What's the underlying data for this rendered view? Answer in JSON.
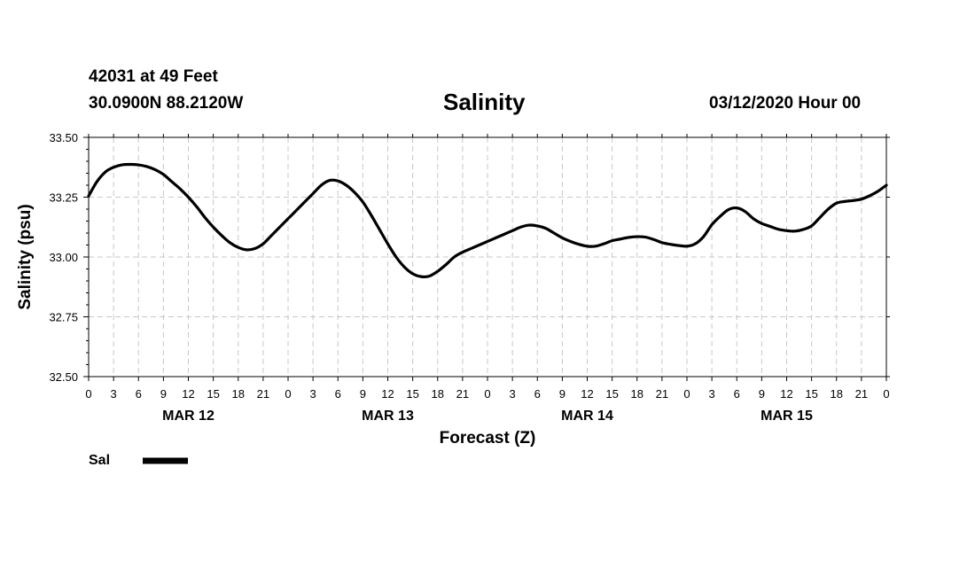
{
  "header": {
    "station": "42031 at 49 Feet",
    "coords": "30.0900N 88.2120W",
    "title": "Salinity",
    "timestamp": "03/12/2020 Hour 00"
  },
  "chart_data": {
    "type": "line",
    "title": "Salinity",
    "xlabel": "Forecast (Z)",
    "ylabel": "Salinity (psu)",
    "x_unit": "forecast hour",
    "xlim": [
      0,
      96
    ],
    "ylim": [
      32.5,
      33.5
    ],
    "y_ticks": [
      32.5,
      32.75,
      33.0,
      33.25,
      33.5
    ],
    "y_tick_labels": [
      "32.50",
      "32.75",
      "33.00",
      "33.25",
      "33.50"
    ],
    "x_tick_hours": [
      0,
      3,
      6,
      9,
      12,
      15,
      18,
      21,
      24,
      27,
      30,
      33,
      36,
      39,
      42,
      45,
      48,
      51,
      54,
      57,
      60,
      63,
      66,
      69,
      72,
      75,
      78,
      81,
      84,
      87,
      90,
      93,
      96
    ],
    "x_tick_labels": [
      "0",
      "3",
      "6",
      "9",
      "12",
      "15",
      "18",
      "21",
      "0",
      "3",
      "6",
      "9",
      "12",
      "15",
      "18",
      "21",
      "0",
      "3",
      "6",
      "9",
      "12",
      "15",
      "18",
      "21",
      "0",
      "3",
      "6",
      "9",
      "12",
      "15",
      "18",
      "21",
      "0"
    ],
    "day_labels": [
      {
        "label": "MAR 12",
        "hour": 12
      },
      {
        "label": "MAR 13",
        "hour": 36
      },
      {
        "label": "MAR 14",
        "hour": 60
      },
      {
        "label": "MAR 15",
        "hour": 84
      }
    ],
    "grid": true,
    "legend_position": "bottom-left",
    "series": [
      {
        "name": "Sal",
        "x": [
          0,
          1,
          2,
          3,
          4,
          5,
          6,
          7,
          8,
          9,
          10,
          11,
          12,
          13,
          14,
          15,
          16,
          17,
          18,
          19,
          20,
          21,
          22,
          23,
          24,
          25,
          26,
          27,
          28,
          29,
          30,
          31,
          32,
          33,
          34,
          35,
          36,
          37,
          38,
          39,
          40,
          41,
          42,
          43,
          44,
          45,
          46,
          47,
          48,
          49,
          50,
          51,
          52,
          53,
          54,
          55,
          56,
          57,
          58,
          59,
          60,
          61,
          62,
          63,
          64,
          65,
          66,
          67,
          68,
          69,
          70,
          71,
          72,
          73,
          74,
          75,
          76,
          77,
          78,
          79,
          80,
          81,
          82,
          83,
          84,
          85,
          86,
          87,
          88,
          89,
          90,
          91,
          92,
          93,
          94,
          95,
          96
        ],
        "values": [
          33.255,
          33.315,
          33.355,
          33.375,
          33.385,
          33.387,
          33.385,
          33.378,
          33.365,
          33.345,
          33.315,
          33.285,
          33.25,
          33.21,
          33.165,
          33.125,
          33.09,
          33.06,
          33.04,
          33.03,
          33.035,
          33.055,
          33.09,
          33.125,
          33.16,
          33.195,
          33.23,
          33.265,
          33.3,
          33.32,
          33.318,
          33.3,
          33.27,
          33.23,
          33.175,
          33.115,
          33.055,
          33.0,
          32.958,
          32.93,
          32.918,
          32.92,
          32.94,
          32.968,
          33.0,
          33.02,
          33.035,
          33.05,
          33.065,
          33.08,
          33.095,
          33.11,
          33.125,
          33.133,
          33.13,
          33.12,
          33.1,
          33.08,
          33.065,
          33.053,
          33.045,
          33.045,
          33.055,
          33.068,
          33.075,
          33.082,
          33.085,
          33.083,
          33.073,
          33.06,
          33.053,
          33.048,
          33.045,
          33.055,
          33.085,
          33.135,
          33.17,
          33.198,
          33.205,
          33.19,
          33.16,
          33.14,
          33.128,
          33.116,
          33.11,
          33.108,
          33.115,
          33.13,
          33.165,
          33.2,
          33.225,
          33.232,
          33.236,
          33.242,
          33.256,
          33.275,
          33.3
        ]
      }
    ]
  },
  "legend": {
    "items": [
      {
        "label": "Sal",
        "color": "#000000"
      }
    ]
  }
}
